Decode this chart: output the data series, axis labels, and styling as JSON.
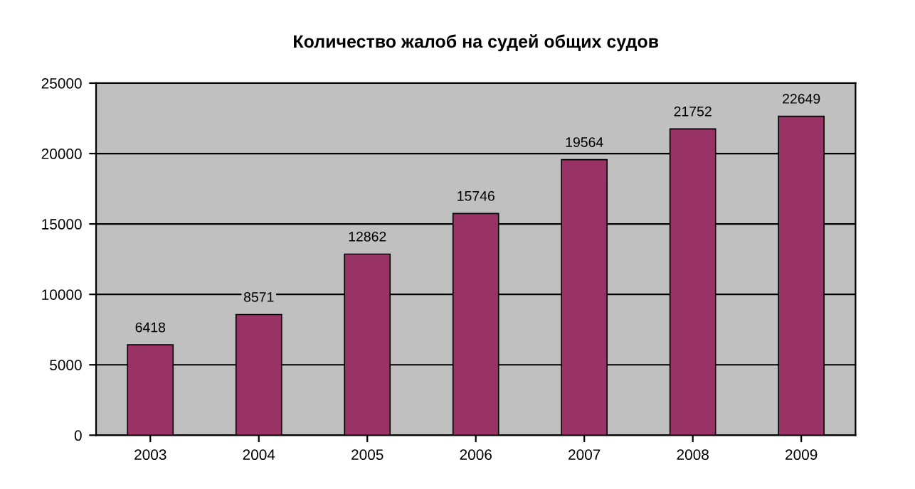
{
  "chart_data": {
    "type": "bar",
    "title": "Количество жалоб на судей общих судов",
    "categories": [
      "2003",
      "2004",
      "2005",
      "2006",
      "2007",
      "2008",
      "2009"
    ],
    "values": [
      6418,
      8571,
      12862,
      15746,
      19564,
      21752,
      22649
    ],
    "color": "#993366",
    "ylim": [
      0,
      25000
    ],
    "yticks": [
      0,
      5000,
      10000,
      15000,
      20000,
      25000
    ],
    "grid": "y",
    "data_labels": true
  }
}
